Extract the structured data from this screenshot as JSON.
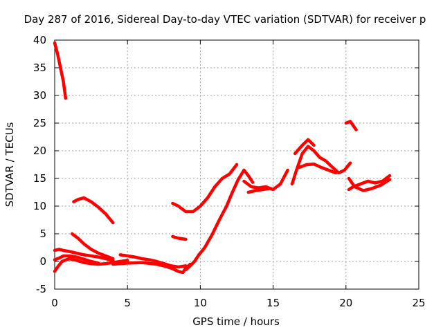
{
  "chart_data": {
    "type": "scatter",
    "title": "Day 287 of 2016, Sidereal Day-to-day VTEC variation (SDTVAR) for receiver p",
    "xlabel": "GPS time / hours",
    "ylabel": "SDTVAR / TECUs",
    "xlim": [
      0,
      25
    ],
    "ylim": [
      -5,
      40
    ],
    "xticks": [
      "0",
      "5",
      "10",
      "15",
      "20",
      "25"
    ],
    "yticks": [
      "-5",
      "0",
      "5",
      "10",
      "15",
      "20",
      "25",
      "30",
      "35",
      "40"
    ],
    "grid": true,
    "color": "#ff0000",
    "series": [
      {
        "x": [
          0.0,
          0.2,
          0.4,
          0.6,
          0.75
        ],
        "y": [
          39.5,
          37.5,
          35,
          32.5,
          29.5
        ]
      },
      {
        "x": [
          1.3,
          1.6,
          2.0,
          2.5,
          3.0,
          3.5,
          4.0
        ],
        "y": [
          10.8,
          11.2,
          11.5,
          10.8,
          9.8,
          8.6,
          7.0
        ]
      },
      {
        "x": [
          1.2,
          1.6,
          2.0,
          2.5,
          3.0,
          3.5,
          4.0
        ],
        "y": [
          5.0,
          4.2,
          3.2,
          2.2,
          1.5,
          1.0,
          0.5
        ]
      },
      {
        "x": [
          0.0,
          0.3,
          0.6,
          1.0,
          1.5,
          2.0,
          2.5,
          3.0,
          3.5,
          4.0
        ],
        "y": [
          2.0,
          2.2,
          2.0,
          1.8,
          1.5,
          1.2,
          1.0,
          0.8,
          0.5,
          0.2
        ]
      },
      {
        "x": [
          0.0,
          0.2,
          0.5,
          1.0,
          1.5,
          2.0,
          2.5,
          3.0,
          3.5,
          4.0,
          4.5,
          5.0
        ],
        "y": [
          -1.8,
          -1.0,
          0.0,
          0.5,
          0.2,
          -0.2,
          -0.4,
          -0.5,
          -0.4,
          -0.2,
          0.0,
          0.2
        ]
      },
      {
        "x": [
          0.0,
          0.3,
          0.6,
          1.0,
          1.5,
          2.0,
          2.5,
          3.0
        ],
        "y": [
          0.3,
          0.6,
          1.0,
          1.0,
          0.8,
          0.4,
          0.0,
          -0.3
        ]
      },
      {
        "x": [
          4.5,
          5.0,
          5.5,
          6.0,
          6.5,
          7.0,
          7.5,
          8.0,
          8.5,
          9.0
        ],
        "y": [
          1.2,
          1.0,
          0.8,
          0.5,
          0.3,
          0.0,
          -0.4,
          -0.8,
          -1.0,
          -0.8
        ]
      },
      {
        "x": [
          4.0,
          5.0,
          6.0,
          7.0,
          7.5,
          8.0,
          8.5,
          8.8,
          9.0,
          9.3
        ],
        "y": [
          -0.5,
          -0.3,
          -0.2,
          -0.5,
          -0.8,
          -1.2,
          -1.8,
          -2.0,
          -1.2,
          -0.5
        ]
      },
      {
        "x": [
          8.1,
          8.5,
          9.0,
          9.5,
          10.0,
          10.5,
          11.0,
          11.5,
          12.0,
          12.5
        ],
        "y": [
          10.5,
          10.0,
          9.0,
          9.0,
          10.0,
          11.5,
          13.5,
          15.0,
          15.8,
          17.5
        ]
      },
      {
        "x": [
          8.1,
          8.5,
          9.0
        ],
        "y": [
          4.5,
          4.2,
          4.0
        ]
      },
      {
        "x": [
          9.0,
          9.3,
          9.6,
          9.9,
          10.3,
          10.8,
          11.3,
          11.8,
          12.2,
          12.6,
          13.0,
          13.3,
          13.6
        ],
        "y": [
          -1.5,
          -0.8,
          0.0,
          1.2,
          2.5,
          4.8,
          7.5,
          10.0,
          12.5,
          14.8,
          16.5,
          15.5,
          14.3
        ]
      },
      {
        "x": [
          13.0,
          13.5,
          14.0,
          14.5,
          15.0,
          15.5,
          16.0
        ],
        "y": [
          14.5,
          13.5,
          13.3,
          13.5,
          13.0,
          14.0,
          16.5
        ]
      },
      {
        "x": [
          13.3,
          13.8,
          14.3,
          14.8
        ],
        "y": [
          12.5,
          12.8,
          13.0,
          13.2
        ]
      },
      {
        "x": [
          16.3,
          16.6,
          17.0,
          17.4,
          17.8,
          18.2,
          18.6,
          19.0,
          19.5,
          19.9,
          20.3
        ],
        "y": [
          14.0,
          16.5,
          19.5,
          20.8,
          20.0,
          18.8,
          18.2,
          17.2,
          16.0,
          16.5,
          17.8
        ]
      },
      {
        "x": [
          16.5,
          17.0,
          17.4,
          17.8
        ],
        "y": [
          19.5,
          21.0,
          22.0,
          21.0
        ]
      },
      {
        "x": [
          16.8,
          17.3,
          17.8,
          18.3,
          18.8,
          19.3
        ],
        "y": [
          17.0,
          17.5,
          17.6,
          17.0,
          16.5,
          16.0
        ]
      },
      {
        "x": [
          20.0,
          20.3,
          20.7
        ],
        "y": [
          25.0,
          25.3,
          23.8
        ]
      },
      {
        "x": [
          20.2,
          20.5,
          21.0,
          21.5,
          22.0,
          22.5,
          23.0
        ],
        "y": [
          13.0,
          13.5,
          14.0,
          14.5,
          14.2,
          14.5,
          15.5
        ]
      },
      {
        "x": [
          20.2,
          20.6,
          21.2,
          21.8,
          22.4,
          23.0
        ],
        "y": [
          15.0,
          13.5,
          12.8,
          13.2,
          13.8,
          14.8
        ]
      }
    ]
  }
}
